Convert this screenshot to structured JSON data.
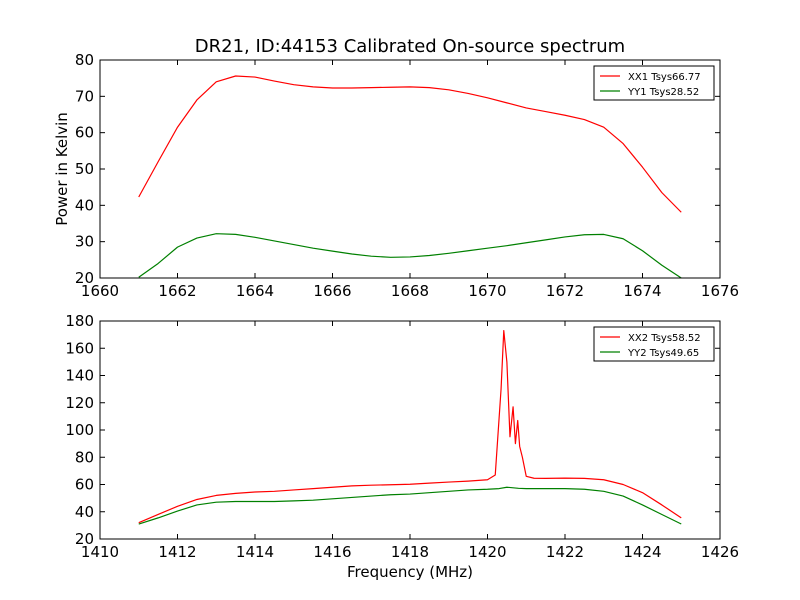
{
  "figure": {
    "title": "DR21, ID:44153 Calibrated On-source spectrum"
  },
  "chart_data": [
    {
      "type": "line",
      "title": "DR21, ID:44153 Calibrated On-source spectrum",
      "xlabel": "",
      "ylabel": "Power in Kelvin",
      "xlim": [
        1660,
        1676
      ],
      "ylim": [
        20,
        80
      ],
      "xticks": [
        1660,
        1662,
        1664,
        1666,
        1668,
        1670,
        1672,
        1674,
        1676
      ],
      "yticks": [
        20,
        30,
        40,
        50,
        60,
        70,
        80
      ],
      "grid": false,
      "legend_position": "top-right",
      "series": [
        {
          "name": "XX1 Tsys66.77",
          "color": "#ff0000",
          "x": [
            1661.0,
            1661.5,
            1662.0,
            1662.5,
            1663.0,
            1663.5,
            1664.0,
            1664.5,
            1665.0,
            1665.5,
            1666.0,
            1666.5,
            1667.0,
            1667.5,
            1668.0,
            1668.5,
            1669.0,
            1669.5,
            1670.0,
            1670.5,
            1671.0,
            1671.5,
            1672.0,
            1672.5,
            1673.0,
            1673.5,
            1674.0,
            1674.5,
            1675.0
          ],
          "y": [
            42.3,
            52.0,
            61.5,
            69.0,
            74.0,
            75.6,
            75.3,
            74.2,
            73.2,
            72.6,
            72.3,
            72.3,
            72.4,
            72.5,
            72.6,
            72.4,
            71.8,
            70.8,
            69.6,
            68.2,
            66.8,
            65.8,
            64.8,
            63.6,
            61.5,
            57.0,
            50.5,
            43.5,
            38.1
          ]
        },
        {
          "name": "YY1 Tsys28.52",
          "color": "#008000",
          "x": [
            1661.0,
            1661.5,
            1662.0,
            1662.5,
            1663.0,
            1663.5,
            1664.0,
            1664.5,
            1665.0,
            1665.5,
            1666.0,
            1666.5,
            1667.0,
            1667.5,
            1668.0,
            1668.5,
            1669.0,
            1669.5,
            1670.0,
            1670.5,
            1671.0,
            1671.5,
            1672.0,
            1672.5,
            1673.0,
            1673.5,
            1674.0,
            1674.5,
            1675.0
          ],
          "y": [
            20.2,
            24.0,
            28.5,
            31.0,
            32.2,
            32.0,
            31.2,
            30.2,
            29.2,
            28.2,
            27.4,
            26.6,
            26.0,
            25.7,
            25.8,
            26.2,
            26.8,
            27.5,
            28.2,
            28.9,
            29.7,
            30.5,
            31.3,
            31.9,
            32.0,
            30.8,
            27.5,
            23.5,
            20.0
          ]
        }
      ]
    },
    {
      "type": "line",
      "title": "",
      "xlabel": "Frequency (MHz)",
      "ylabel": "",
      "xlim": [
        1410,
        1426
      ],
      "ylim": [
        20,
        180
      ],
      "xticks": [
        1410,
        1412,
        1414,
        1416,
        1418,
        1420,
        1422,
        1424,
        1426
      ],
      "yticks": [
        20,
        40,
        60,
        80,
        100,
        120,
        140,
        160,
        180
      ],
      "grid": false,
      "legend_position": "top-right",
      "series": [
        {
          "name": "XX2 Tsys58.52",
          "color": "#ff0000",
          "x": [
            1411.0,
            1411.5,
            1412.0,
            1412.5,
            1413.0,
            1413.5,
            1414.0,
            1414.5,
            1415.0,
            1415.5,
            1416.0,
            1416.5,
            1417.0,
            1417.5,
            1418.0,
            1418.5,
            1419.0,
            1419.5,
            1420.0,
            1420.2,
            1420.35,
            1420.42,
            1420.5,
            1420.58,
            1420.66,
            1420.72,
            1420.78,
            1420.83,
            1420.9,
            1421.0,
            1421.2,
            1421.5,
            1422.0,
            1422.5,
            1423.0,
            1423.5,
            1424.0,
            1424.5,
            1425.0
          ],
          "y": [
            32.0,
            38.0,
            44.0,
            49.0,
            52.0,
            53.5,
            54.5,
            55.0,
            56.0,
            57.0,
            58.0,
            59.0,
            59.5,
            59.8,
            60.2,
            61.0,
            61.8,
            62.5,
            63.5,
            67.0,
            130.0,
            173.0,
            150.0,
            95.0,
            117.0,
            90.0,
            107.0,
            88.0,
            80.0,
            66.0,
            64.6,
            64.5,
            64.7,
            64.5,
            63.5,
            60.0,
            54.0,
            45.0,
            35.5
          ]
        },
        {
          "name": "YY2 Tsys49.65",
          "color": "#008000",
          "x": [
            1411.0,
            1411.5,
            1412.0,
            1412.5,
            1413.0,
            1413.5,
            1414.0,
            1414.5,
            1415.0,
            1415.5,
            1416.0,
            1416.5,
            1417.0,
            1417.5,
            1418.0,
            1418.5,
            1419.0,
            1419.5,
            1420.0,
            1420.3,
            1420.5,
            1420.8,
            1421.0,
            1421.5,
            1422.0,
            1422.5,
            1423.0,
            1423.5,
            1424.0,
            1424.5,
            1425.0
          ],
          "y": [
            31.0,
            35.5,
            40.5,
            45.0,
            47.0,
            47.5,
            47.5,
            47.5,
            48.0,
            48.5,
            49.5,
            50.5,
            51.5,
            52.5,
            53.0,
            54.0,
            55.0,
            56.0,
            56.5,
            57.0,
            58.0,
            57.2,
            57.0,
            57.0,
            57.0,
            56.5,
            55.0,
            51.5,
            45.0,
            38.0,
            31.0
          ]
        }
      ]
    }
  ]
}
